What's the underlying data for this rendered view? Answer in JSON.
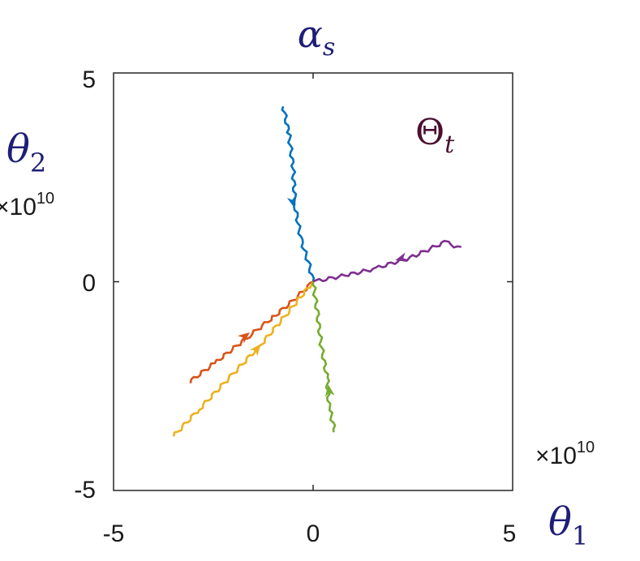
{
  "chart_data": {
    "type": "line",
    "title": "α_s",
    "annotation": "Θ_t",
    "xlabel": "θ_1",
    "ylabel": "θ_2",
    "x_exponent_label": "×10^10",
    "y_exponent_label": "×10^10",
    "xlim": [
      -5,
      5
    ],
    "ylim": [
      -5,
      5
    ],
    "x_ticks": [
      "-5",
      "0",
      "5"
    ],
    "y_ticks": [
      "5",
      "0",
      "-5"
    ],
    "grid": false,
    "series": [
      {
        "color": "#0072BD",
        "x": [
          -0.75,
          -0.6,
          -0.5,
          -0.45,
          -0.3,
          -0.1,
          0.0
        ],
        "y": [
          4.2,
          3.5,
          2.7,
          1.8,
          1.0,
          0.4,
          0.0
        ],
        "arrow_at": [
          -0.5,
          1.9
        ]
      },
      {
        "color": "#7E2F8E",
        "x": [
          3.7,
          3.3,
          2.5,
          1.5,
          0.8,
          0.0
        ],
        "y": [
          0.8,
          0.95,
          0.6,
          0.3,
          0.15,
          0.0
        ],
        "arrow_at": [
          2.2,
          0.55
        ]
      },
      {
        "color": "#D95319",
        "x": [
          -3.1,
          -2.4,
          -1.6,
          -1.0,
          -0.5,
          0.0
        ],
        "y": [
          -2.4,
          -1.9,
          -1.3,
          -0.85,
          -0.45,
          0.0
        ],
        "arrow_at": [
          -1.7,
          -1.3
        ]
      },
      {
        "color": "#EDB120",
        "x": [
          -3.5,
          -2.8,
          -2.0,
          -1.3,
          -0.6,
          0.0
        ],
        "y": [
          -3.7,
          -3.0,
          -2.2,
          -1.5,
          -0.7,
          0.0
        ],
        "arrow_at": [
          -1.4,
          -1.6
        ]
      },
      {
        "color": "#77AC30",
        "x": [
          0.55,
          0.4,
          0.35,
          0.2,
          0.1,
          0.0
        ],
        "y": [
          -3.6,
          -3.0,
          -2.3,
          -1.5,
          -0.7,
          0.0
        ],
        "arrow_at": [
          0.4,
          -2.6
        ]
      }
    ]
  }
}
